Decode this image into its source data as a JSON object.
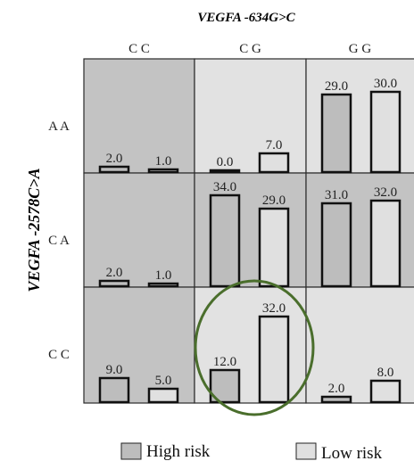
{
  "chart_data": {
    "type": "bar",
    "title": "VEGFA -634G>C",
    "ylabel": "VEGFA -2578C>A",
    "ylim": [
      0,
      40
    ],
    "columns": [
      "C C",
      "C G",
      "G G"
    ],
    "rows": [
      "A A",
      "C A",
      "C C"
    ],
    "series": [
      {
        "name": "High risk"
      },
      {
        "name": "Low risk"
      }
    ],
    "cells": [
      {
        "row": "A A",
        "col": "C C",
        "shade": "high",
        "values": [
          2.0,
          1.0
        ],
        "labels": [
          "2.0",
          "1.0"
        ]
      },
      {
        "row": "A A",
        "col": "C G",
        "shade": "low",
        "values": [
          0.0,
          7.0
        ],
        "labels": [
          "0.0",
          "7.0"
        ]
      },
      {
        "row": "A A",
        "col": "G G",
        "shade": "low",
        "values": [
          29.0,
          30.0
        ],
        "labels": [
          "29.0",
          "30.0"
        ]
      },
      {
        "row": "C A",
        "col": "C C",
        "shade": "high",
        "values": [
          2.0,
          1.0
        ],
        "labels": [
          "2.0",
          "1.0"
        ]
      },
      {
        "row": "C A",
        "col": "C G",
        "shade": "high",
        "values": [
          34.0,
          29.0
        ],
        "labels": [
          "34.0",
          "29.0"
        ]
      },
      {
        "row": "C A",
        "col": "G G",
        "shade": "high",
        "values": [
          31.0,
          32.0
        ],
        "labels": [
          "31.0",
          "32.0"
        ]
      },
      {
        "row": "C C",
        "col": "C C",
        "shade": "high",
        "values": [
          9.0,
          5.0
        ],
        "labels": [
          "9.0",
          "5.0"
        ]
      },
      {
        "row": "C C",
        "col": "C G",
        "shade": "low",
        "values": [
          12.0,
          32.0
        ],
        "labels": [
          "12.0",
          "32.0"
        ]
      },
      {
        "row": "C C",
        "col": "G G",
        "shade": "low",
        "values": [
          2.0,
          8.0
        ],
        "labels": [
          "2.0",
          "8.0"
        ]
      }
    ],
    "highlight": {
      "row": "C C",
      "col": "C G",
      "shape": "ellipse"
    },
    "legend_position": "bottom",
    "colors": {
      "high_risk": "#bdbdbd",
      "low_risk": "#e0e0e0",
      "cell_high": "#c3c3c3",
      "cell_low": "#e2e2e2",
      "highlight": "#4a6e2c"
    }
  }
}
